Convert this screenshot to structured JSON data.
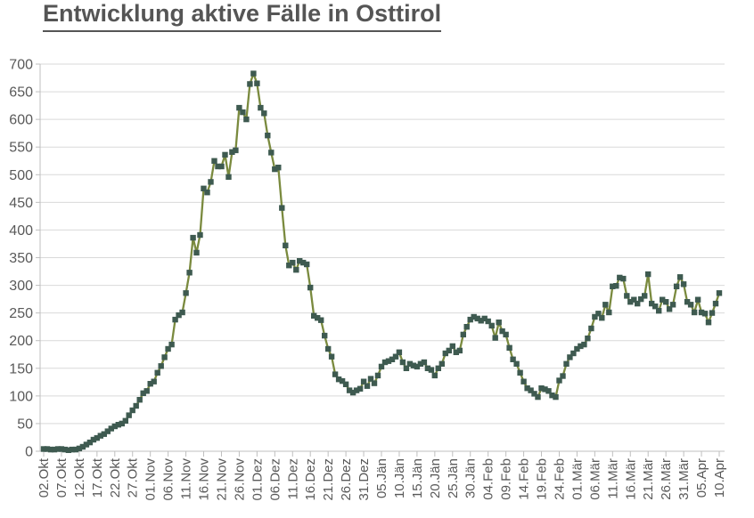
{
  "chart_data": {
    "type": "line",
    "title": "Entwicklung aktive Fälle in Osttirol",
    "xlabel": "",
    "ylabel": "",
    "ylim": [
      0,
      700
    ],
    "y_step": 50,
    "grid": "horizontal",
    "legend": "none",
    "marker": "square",
    "points_per_tick": 5,
    "x_tick_labels": [
      "02.Okt",
      "07.Okt",
      "12.Okt",
      "17.Okt",
      "22.Okt",
      "27.Okt",
      "01.Nov",
      "06.Nov",
      "11.Nov",
      "16.Nov",
      "21.Nov",
      "26.Nov",
      "01.Dez",
      "06.Dez",
      "11.Dez",
      "16.Dez",
      "21.Dez",
      "26.Dez",
      "31.Dez",
      "05.Jän",
      "10.Jän",
      "15.Jän",
      "20.Jän",
      "25.Jän",
      "30.Jän",
      "04.Feb",
      "09.Feb",
      "14.Feb",
      "19.Feb",
      "24.Feb",
      "01.Mär",
      "06.Mär",
      "11.Mär",
      "16.Mär",
      "21.Mär",
      "26.Mär",
      "31.Mär",
      "05.Apr",
      "10.Apr"
    ],
    "series": [
      {
        "name": "aktive Fälle",
        "values": [
          4,
          4,
          3,
          3,
          4,
          4,
          3,
          2,
          3,
          3,
          5,
          8,
          12,
          16,
          21,
          24,
          28,
          31,
          36,
          41,
          45,
          48,
          50,
          55,
          65,
          74,
          82,
          93,
          105,
          109,
          122,
          126,
          142,
          154,
          170,
          185,
          193,
          238,
          246,
          251,
          286,
          323,
          386,
          359,
          391,
          475,
          468,
          487,
          525,
          515,
          515,
          536,
          496,
          541,
          544,
          621,
          613,
          600,
          664,
          683,
          665,
          621,
          611,
          571,
          540,
          510,
          513,
          440,
          372,
          336,
          341,
          328,
          344,
          341,
          338,
          296,
          245,
          241,
          237,
          209,
          185,
          171,
          139,
          130,
          127,
          121,
          110,
          106,
          110,
          113,
          126,
          118,
          131,
          123,
          137,
          153,
          161,
          163,
          166,
          171,
          179,
          161,
          150,
          158,
          155,
          153,
          158,
          161,
          150,
          147,
          137,
          150,
          158,
          177,
          182,
          190,
          179,
          182,
          211,
          225,
          238,
          243,
          240,
          236,
          240,
          235,
          227,
          205,
          233,
          217,
          211,
          187,
          166,
          158,
          142,
          126,
          114,
          110,
          104,
          98,
          114,
          112,
          109,
          101,
          98,
          128,
          136,
          158,
          170,
          177,
          185,
          190,
          193,
          204,
          222,
          243,
          249,
          241,
          265,
          251,
          298,
          299,
          314,
          312,
          281,
          270,
          274,
          267,
          275,
          281,
          320,
          267,
          262,
          254,
          274,
          270,
          257,
          265,
          298,
          315,
          302,
          270,
          265,
          251,
          274,
          251,
          249,
          233,
          250,
          267,
          286
        ]
      }
    ],
    "colors": {
      "line": "#7A8A3E",
      "marker": "#3E5A50",
      "grid": "#D9D9D9",
      "axis": "#BFBFBF",
      "tick_text": "#595959",
      "title_text": "#555555",
      "background": "#FFFFFF"
    }
  }
}
